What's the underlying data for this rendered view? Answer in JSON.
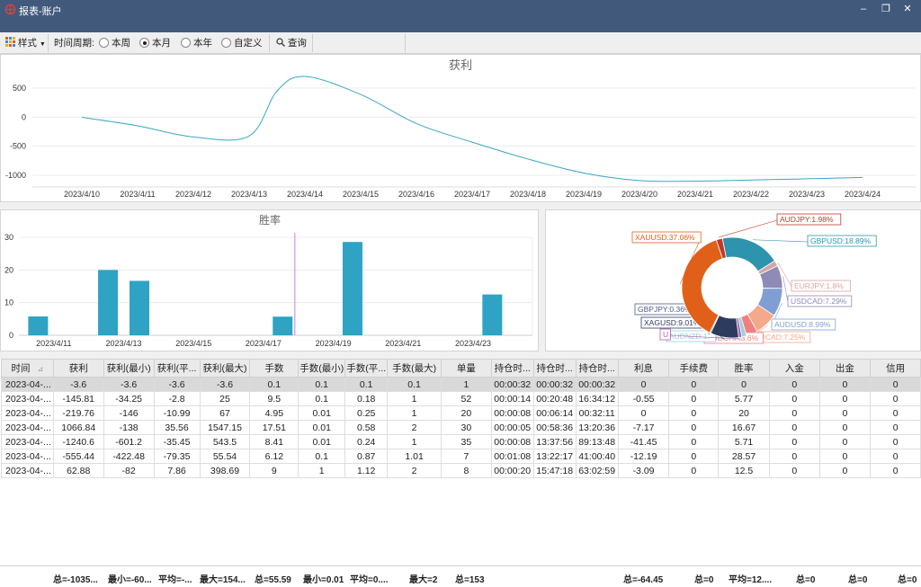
{
  "window": {
    "title": "报表-账户",
    "min": "–",
    "restore": "❐",
    "close": "✕"
  },
  "toolbar": {
    "style_label": "样式",
    "period_label": "时间周期:",
    "radios": [
      {
        "label": "本周",
        "checked": false
      },
      {
        "label": "本月",
        "checked": true
      },
      {
        "label": "本年",
        "checked": false
      },
      {
        "label": "自定义",
        "checked": false
      }
    ],
    "query_label": "查询"
  },
  "profit_chart": {
    "title": "获利",
    "chart_data": {
      "type": "line",
      "x": [
        "2023/4/10",
        "2023/4/11",
        "2023/4/12",
        "2023/4/13",
        "2023/4/14",
        "2023/4/15",
        "2023/4/16",
        "2023/4/17",
        "2023/4/18",
        "2023/4/19",
        "2023/4/20",
        "2023/4/21",
        "2023/4/22",
        "2023/4/23",
        "2023/4/24"
      ],
      "y_ticks": [
        500,
        0,
        -500,
        -1000
      ],
      "ylim": [
        -1200,
        700
      ],
      "series": [
        {
          "points": [
            [
              0,
              -3.6
            ],
            [
              1,
              -149
            ],
            [
              2,
              -340
            ],
            [
              3,
              -325
            ],
            [
              3.5,
              450
            ],
            [
              4,
              700
            ],
            [
              5,
              390
            ],
            [
              6,
              -110
            ],
            [
              7,
              -430
            ],
            [
              8,
              -720
            ],
            [
              9,
              -960
            ],
            [
              10,
              -1090
            ],
            [
              11,
              -1100
            ],
            [
              12,
              -1080
            ],
            [
              13,
              -1060
            ],
            [
              14,
              -1035
            ]
          ]
        }
      ],
      "color": "#3aa7c4"
    }
  },
  "winrate_chart": {
    "title": "胜率",
    "chart_data": {
      "type": "bar",
      "y_ticks": [
        30,
        20,
        10,
        0
      ],
      "ylim": [
        0,
        30
      ],
      "x_labels": [
        {
          "label": "2023/4/11",
          "pos": 1
        },
        {
          "label": "2023/4/13",
          "pos": 3
        },
        {
          "label": "2023/4/15",
          "pos": 5
        },
        {
          "label": "2023/4/17",
          "pos": 7
        },
        {
          "label": "2023/4/19",
          "pos": 9
        },
        {
          "label": "2023/4/21",
          "pos": 11
        },
        {
          "label": "2023/4/23",
          "pos": 13
        }
      ],
      "bars": [
        {
          "pos": 0.55,
          "value": 5.77
        },
        {
          "pos": 2.55,
          "value": 20
        },
        {
          "pos": 3.45,
          "value": 16.67
        },
        {
          "pos": 7.55,
          "value": 5.71
        },
        {
          "pos": 9.55,
          "value": 28.57
        },
        {
          "pos": 13.55,
          "value": 12.5
        }
      ],
      "cursor_pos": 7.9,
      "xmax": 14.7,
      "color": "#2ea3c3"
    }
  },
  "pie_chart": {
    "chart_data": {
      "type": "pie",
      "slices": [
        {
          "name": "AUDJPY",
          "label": "AUDJPY:1.98%",
          "value": 1.98,
          "color": "#c0392b"
        },
        {
          "name": "GBPUSD",
          "label": "GBPUSD:18.89%",
          "value": 18.89,
          "color": "#2e93ad"
        },
        {
          "name": "EURJPY",
          "label": "EURJPY:1.8%",
          "value": 1.8,
          "color": "#d8a4a4"
        },
        {
          "name": "USDCAD",
          "label": "USDCAD:7.29%",
          "value": 7.29,
          "color": "#8e8bb7"
        },
        {
          "name": "AUDUSD",
          "label": "AUDUSD:8.99%",
          "value": 8.99,
          "color": "#7f9fd4"
        },
        {
          "name": "AUDCAD",
          "label": "AUDCAD:7.25%",
          "value": 7.25,
          "color": "#f4a98a"
        },
        {
          "name": "AUDCHF",
          "label": "AUDCHF:3.6%",
          "value": 3.6,
          "color": "#f08080"
        },
        {
          "name": "AUDNZD",
          "label": "AUDNZD:1.",
          "value": 1.5,
          "color": "#9ad0e0"
        },
        {
          "name": "U",
          "label": "U",
          "value": 1.0,
          "color": "#b05ca8"
        },
        {
          "name": "XAGUSD",
          "label": "XAGUSD:9.01%",
          "value": 9.01,
          "color": "#2d3b5e"
        },
        {
          "name": "GBPJPY",
          "label": "GBPJPY:0.36%",
          "value": 0.36,
          "color": "#4a5d8c"
        },
        {
          "name": "XAUUSD",
          "label": "XAUUSD:37.06%",
          "value": 37.06,
          "color": "#e0601a"
        }
      ]
    }
  },
  "table": {
    "sort_icon": "⊿",
    "columns": [
      "时间",
      "获利",
      "获利(最小)",
      "获利(平...",
      "获利(最大)",
      "手数",
      "手数(最小)",
      "手数(平...",
      "手数(最大)",
      "单量",
      "持仓时...",
      "持仓时...",
      "持仓时...",
      "利息",
      "手续费",
      "胜率",
      "入金",
      "出金",
      "信用"
    ],
    "rows": [
      [
        "2023-04-...",
        "-3.6",
        "-3.6",
        "-3.6",
        "-3.6",
        "0.1",
        "0.1",
        "0.1",
        "0.1",
        "1",
        "00:00:32",
        "00:00:32",
        "00:00:32",
        "0",
        "0",
        "0",
        "0",
        "0",
        "0"
      ],
      [
        "2023-04-...",
        "-145.81",
        "-34.25",
        "-2.8",
        "25",
        "9.5",
        "0.1",
        "0.18",
        "1",
        "52",
        "00:00:14",
        "00:20:48",
        "16:34:12",
        "-0.55",
        "0",
        "5.77",
        "0",
        "0",
        "0"
      ],
      [
        "2023-04-...",
        "-219.76",
        "-146",
        "-10.99",
        "67",
        "4.95",
        "0.01",
        "0.25",
        "1",
        "20",
        "00:00:08",
        "00:06:14",
        "00:32:11",
        "0",
        "0",
        "20",
        "0",
        "0",
        "0"
      ],
      [
        "2023-04-...",
        "1066.84",
        "-138",
        "35.56",
        "1547.15",
        "17.51",
        "0.01",
        "0.58",
        "2",
        "30",
        "00:00:05",
        "00:58:36",
        "13:20:36",
        "-7.17",
        "0",
        "16.67",
        "0",
        "0",
        "0"
      ],
      [
        "2023-04-...",
        "-1240.6",
        "-601.2",
        "-35.45",
        "543.5",
        "8.41",
        "0.01",
        "0.24",
        "1",
        "35",
        "00:00:08",
        "13:37:56",
        "89:13:48",
        "-41.45",
        "0",
        "5.71",
        "0",
        "0",
        "0"
      ],
      [
        "2023-04-...",
        "-555.44",
        "-422.48",
        "-79.35",
        "55.54",
        "6.12",
        "0.1",
        "0.87",
        "1.01",
        "7",
        "00:01:08",
        "13:22:17",
        "41:00:40",
        "-12.19",
        "0",
        "28.57",
        "0",
        "0",
        "0"
      ],
      [
        "2023-04-...",
        "62.88",
        "-82",
        "7.86",
        "398.69",
        "9",
        "1",
        "1.12",
        "2",
        "8",
        "00:00:20",
        "15:47:18",
        "63:02:59",
        "-3.09",
        "0",
        "12.5",
        "0",
        "0",
        "0"
      ]
    ]
  },
  "footer": [
    {
      "text": "总=-1035..."
    },
    {
      "text": "最小=-60..."
    },
    {
      "text": "平均=-..."
    },
    {
      "text": "最大=154..."
    },
    {
      "text": "总=55.59"
    },
    {
      "text": "最小=0.01"
    },
    {
      "text": "平均=0...."
    },
    {
      "text": "最大=2"
    },
    {
      "text": "总=153"
    },
    {
      "text": "总=-64.45"
    },
    {
      "text": "总=0"
    },
    {
      "text": "平均=12...."
    },
    {
      "text": "总=0"
    },
    {
      "text": "总=0"
    },
    {
      "text": "总=0"
    }
  ]
}
